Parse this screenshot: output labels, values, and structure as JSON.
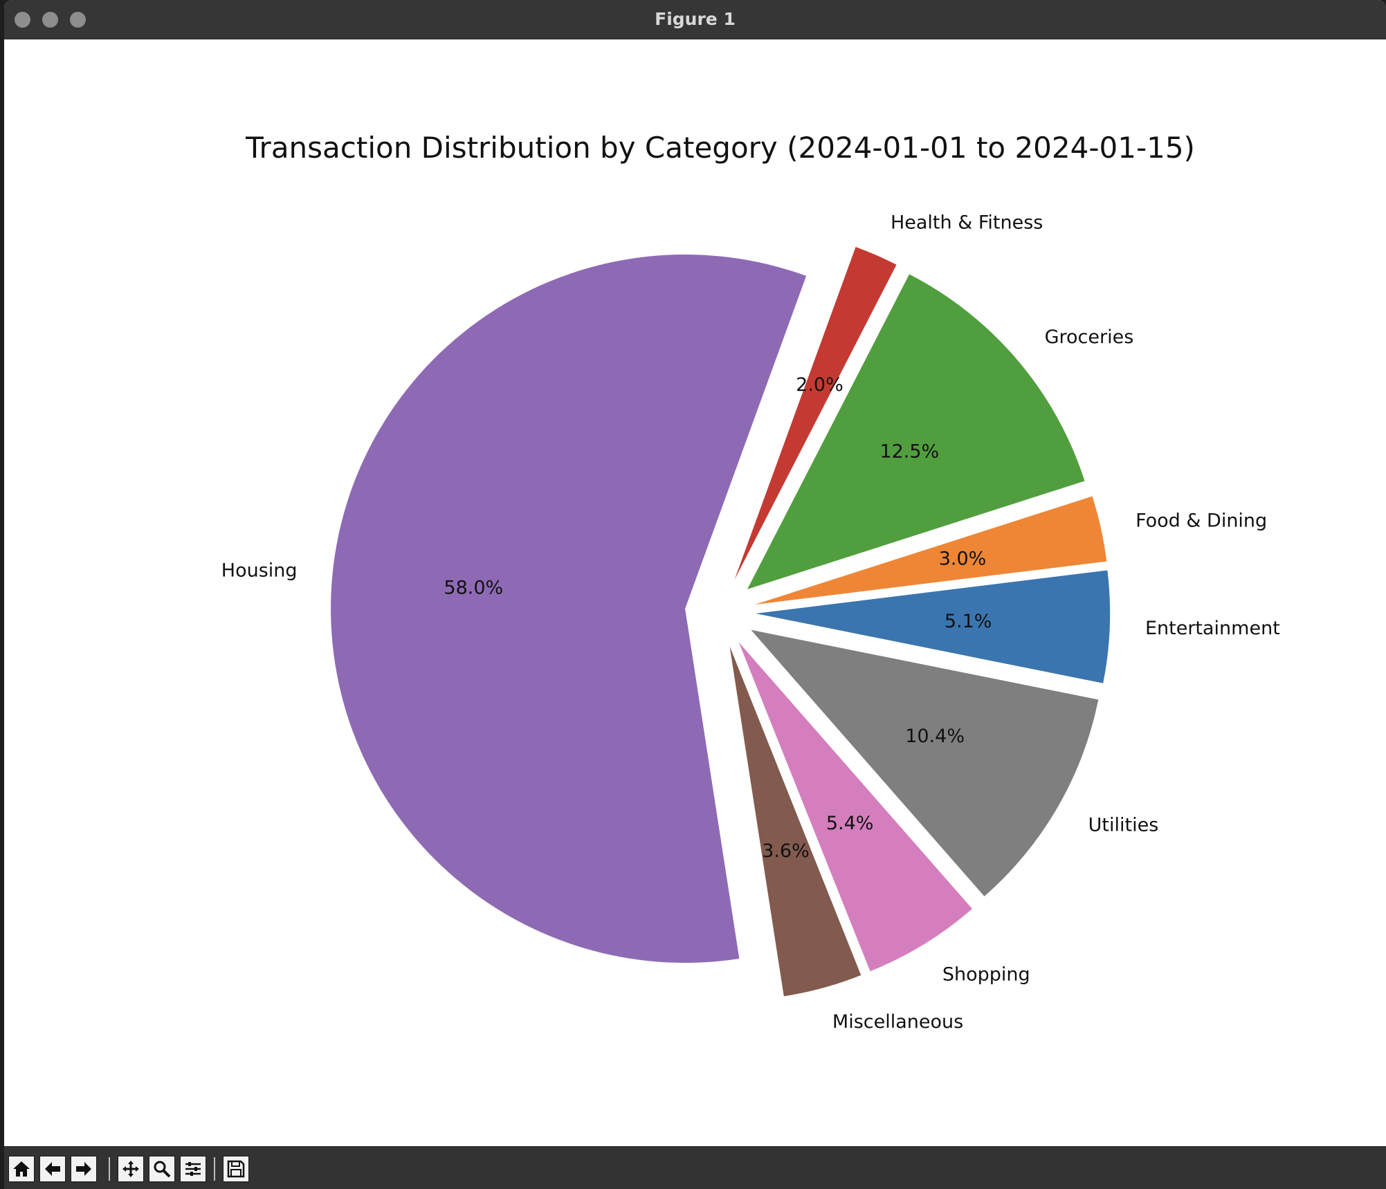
{
  "window": {
    "title": "Figure 1"
  },
  "toolbar": {
    "buttons": [
      "home-icon",
      "back-arrow-icon",
      "forward-arrow-icon",
      "pan-icon",
      "zoom-icon",
      "configure-subplots-icon",
      "save-icon"
    ]
  },
  "chart_data": {
    "type": "pie",
    "title": "Transaction Distribution by Category (2024-01-01 to 2024-01-15)",
    "categories": [
      "Housing",
      "Miscellaneous",
      "Shopping",
      "Utilities",
      "Entertainment",
      "Food & Dining",
      "Groceries",
      "Health & Fitness"
    ],
    "values": [
      58.0,
      3.6,
      5.4,
      10.4,
      5.1,
      3.0,
      12.5,
      2.0
    ],
    "pct_labels": [
      "58.0%",
      "3.6%",
      "5.4%",
      "10.4%",
      "5.1%",
      "3.0%",
      "12.5%",
      "2.0%"
    ],
    "colors": [
      "#8e6ab5",
      "#825a4e",
      "#d47ebe",
      "#7f7f7f",
      "#3a75af",
      "#ef8636",
      "#519e3e",
      "#c43a32"
    ],
    "exploded": true,
    "counterclock": true,
    "legend": "none"
  }
}
